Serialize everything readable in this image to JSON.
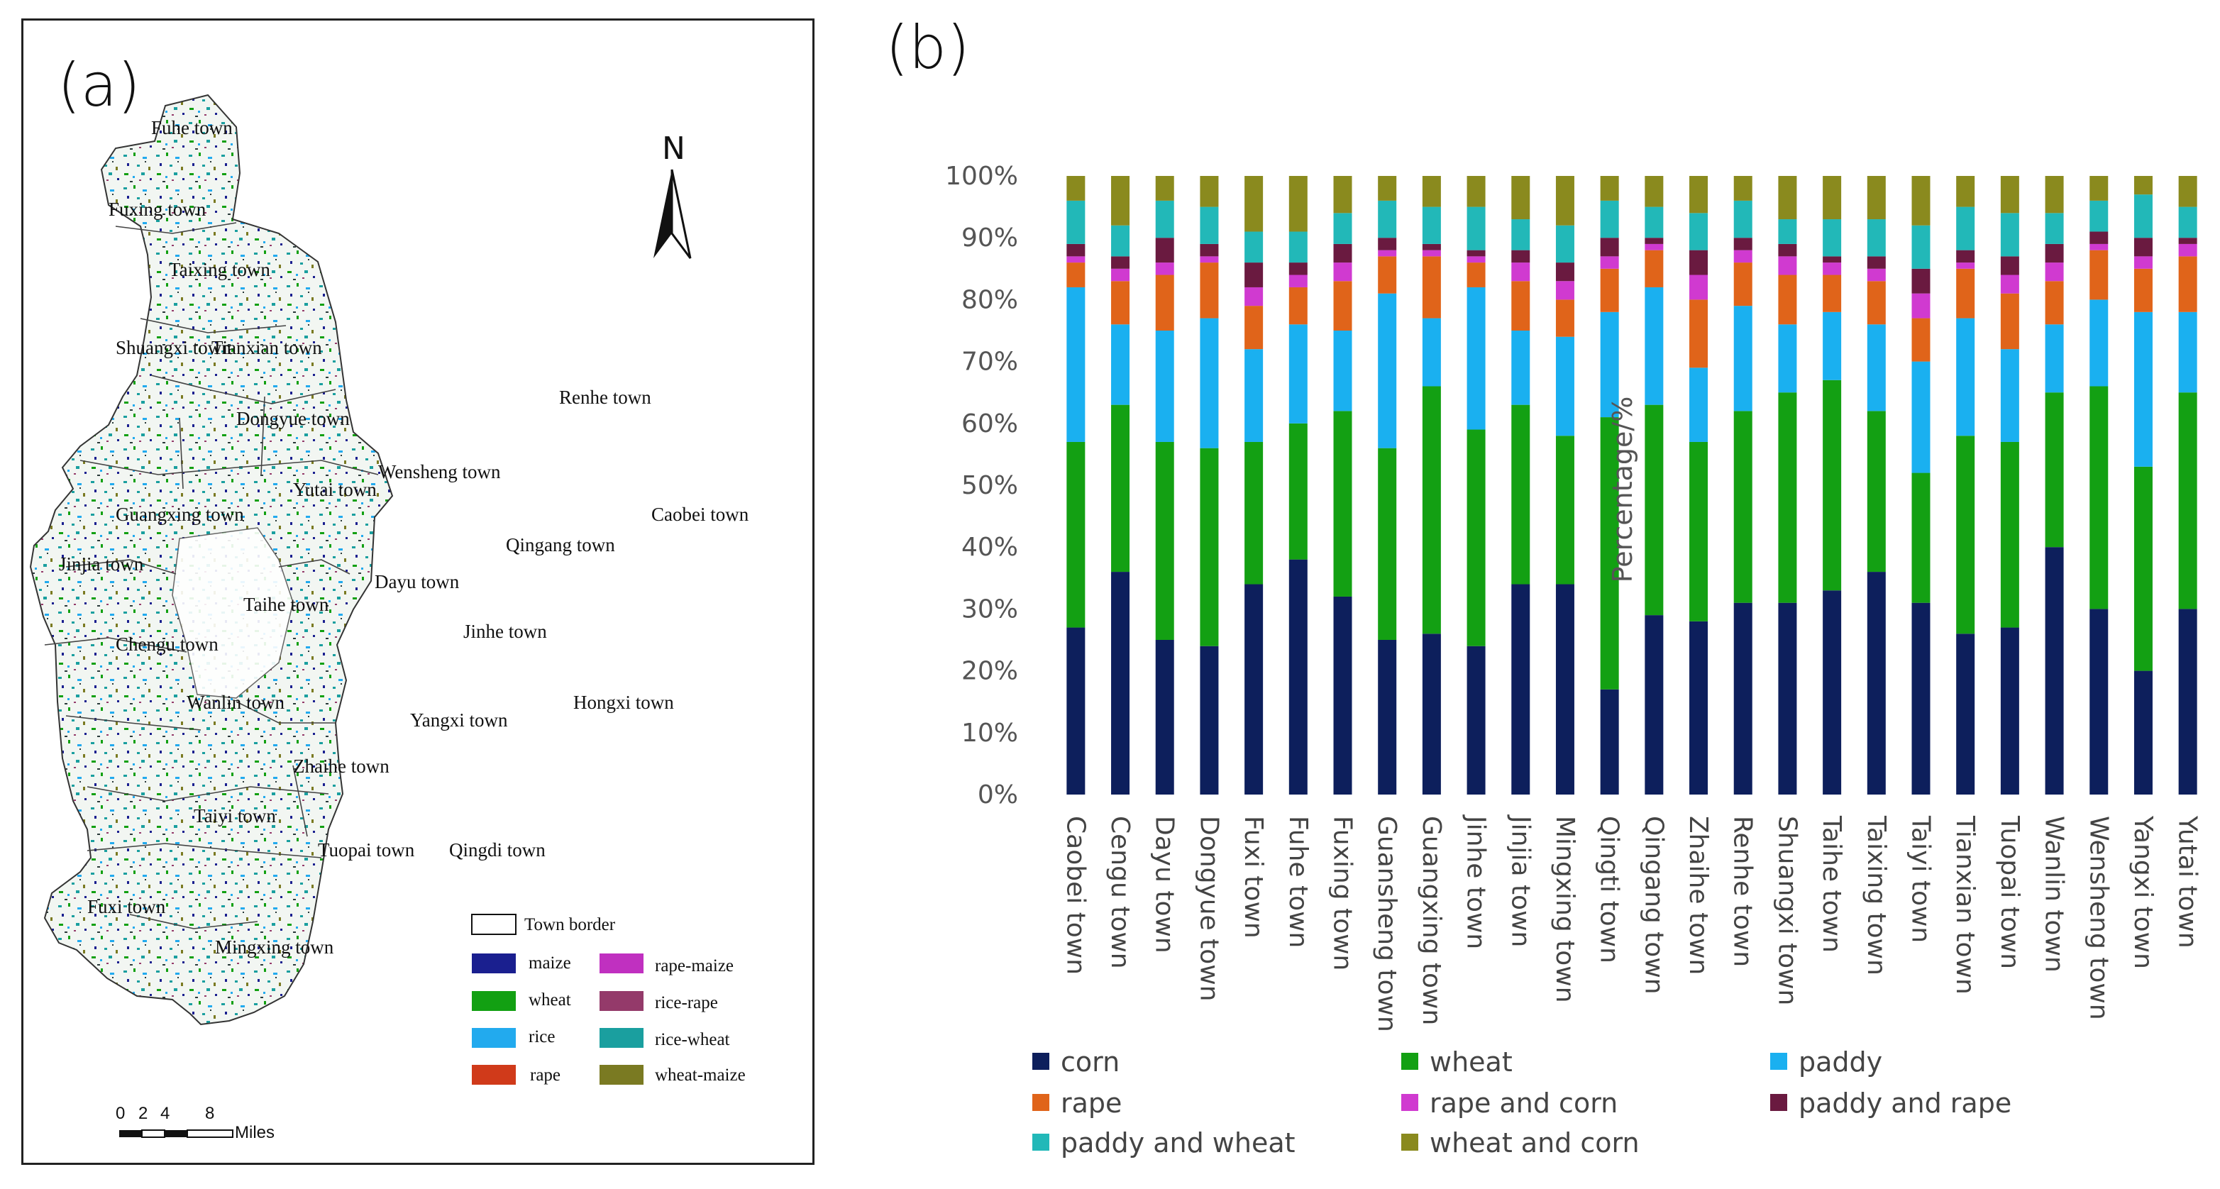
{
  "panel_a": {
    "label": "(a)",
    "north": "N",
    "towns": [
      "Fuhe town",
      "Fuxing town",
      "Taixing town",
      "Shuangxi town",
      "Tianxian town",
      "Renhe town",
      "Dongyue town",
      "Wensheng town",
      "Yutai town",
      "Guangxing town",
      "Caobei town",
      "Qingang town",
      "Jinjia town",
      "Dayu town",
      "Taihe town",
      "Jinhe town",
      "Chengu town",
      "Wanlin town",
      "Hongxi town",
      "Yangxi town",
      "Zhaihe town",
      "Taiyi town",
      "Tuopai town",
      "Qingdi town",
      "Fuxi town",
      "Mingxing town"
    ],
    "legend": {
      "border": "Town border",
      "items": [
        {
          "label": "maize",
          "color": "#1a1f8f"
        },
        {
          "label": "rape-maize",
          "color": "#c030c0"
        },
        {
          "label": "wheat",
          "color": "#12a012"
        },
        {
          "label": "rice-rape",
          "color": "#943a6a"
        },
        {
          "label": "rice",
          "color": "#22aaee"
        },
        {
          "label": "rice-wheat",
          "color": "#1a9f9f"
        },
        {
          "label": "rape",
          "color": "#d03a1a"
        },
        {
          "label": "wheat-maize",
          "color": "#7a7a22"
        }
      ]
    },
    "scale": {
      "ticks": [
        "0",
        "2",
        "4",
        "8"
      ],
      "unit": "Miles"
    }
  },
  "panel_b": {
    "label": "(b)"
  },
  "chart_data": {
    "type": "bar",
    "stacked": true,
    "title": "",
    "xlabel": "",
    "ylabel": "Percentage/%",
    "ylim": [
      0,
      100
    ],
    "yticks": [
      "0%",
      "10%",
      "20%",
      "30%",
      "40%",
      "50%",
      "60%",
      "70%",
      "80%",
      "90%",
      "100%"
    ],
    "legend_position": "bottom",
    "categories": [
      "Caobei town",
      "Cengu town",
      "Dayu town",
      "Dongyue town",
      "Fuxi town",
      "Fuhe town",
      "Fuxing town",
      "Guansheng town",
      "Guangxing town",
      "Jinhe town",
      "Jinjia town",
      "Mingxing town",
      "Qingti town",
      "Qingang town",
      "Zhaihe town",
      "Renhe town",
      "Shuangxi town",
      "Taihe town",
      "Taixing town",
      "Taiyi town",
      "Tianxian town",
      "Tuopai town",
      "Wanlin town",
      "Wensheng town",
      "Yangxi town",
      "Yutai town"
    ],
    "series": [
      {
        "name": "corn",
        "color": "#0d1f5c",
        "values": [
          27,
          36,
          25,
          24,
          34,
          38,
          32,
          25,
          26,
          24,
          34,
          34,
          17,
          29,
          28,
          31,
          31,
          33,
          36,
          31,
          26,
          27,
          40,
          30,
          20,
          30
        ]
      },
      {
        "name": "wheat",
        "color": "#13a013",
        "values": [
          30,
          27,
          32,
          32,
          23,
          22,
          30,
          31,
          40,
          35,
          29,
          24,
          44,
          34,
          29,
          31,
          34,
          34,
          26,
          21,
          32,
          30,
          25,
          36,
          33,
          35
        ]
      },
      {
        "name": "paddy",
        "color": "#1ab0f0",
        "values": [
          25,
          13,
          18,
          21,
          15,
          16,
          13,
          25,
          11,
          23,
          12,
          16,
          17,
          19,
          12,
          17,
          11,
          11,
          14,
          18,
          19,
          15,
          11,
          14,
          25,
          13
        ]
      },
      {
        "name": "rape",
        "color": "#e0641a",
        "values": [
          4,
          7,
          9,
          9,
          7,
          6,
          8,
          6,
          10,
          4,
          8,
          6,
          7,
          6,
          11,
          7,
          8,
          6,
          7,
          7,
          8,
          9,
          7,
          8,
          7,
          9
        ]
      },
      {
        "name": "rape and corn",
        "color": "#d03ad0",
        "values": [
          1,
          2,
          2,
          1,
          3,
          2,
          3,
          1,
          1,
          1,
          3,
          3,
          2,
          1,
          4,
          2,
          3,
          2,
          2,
          4,
          1,
          3,
          3,
          1,
          2,
          2
        ]
      },
      {
        "name": "paddy and rape",
        "color": "#6a1a40",
        "values": [
          2,
          2,
          4,
          2,
          4,
          2,
          3,
          2,
          1,
          1,
          2,
          3,
          3,
          1,
          4,
          2,
          2,
          1,
          2,
          4,
          2,
          3,
          3,
          2,
          3,
          1
        ]
      },
      {
        "name": "paddy and wheat",
        "color": "#22b8b8",
        "values": [
          7,
          5,
          6,
          6,
          5,
          5,
          5,
          6,
          6,
          7,
          5,
          6,
          6,
          5,
          6,
          6,
          4,
          6,
          6,
          7,
          7,
          7,
          5,
          5,
          7,
          5
        ]
      },
      {
        "name": "wheat and corn",
        "color": "#8a8a1e",
        "values": [
          4,
          8,
          4,
          5,
          9,
          9,
          6,
          4,
          5,
          5,
          7,
          8,
          4,
          5,
          6,
          4,
          7,
          7,
          7,
          8,
          5,
          6,
          6,
          4,
          3,
          5
        ]
      }
    ]
  }
}
